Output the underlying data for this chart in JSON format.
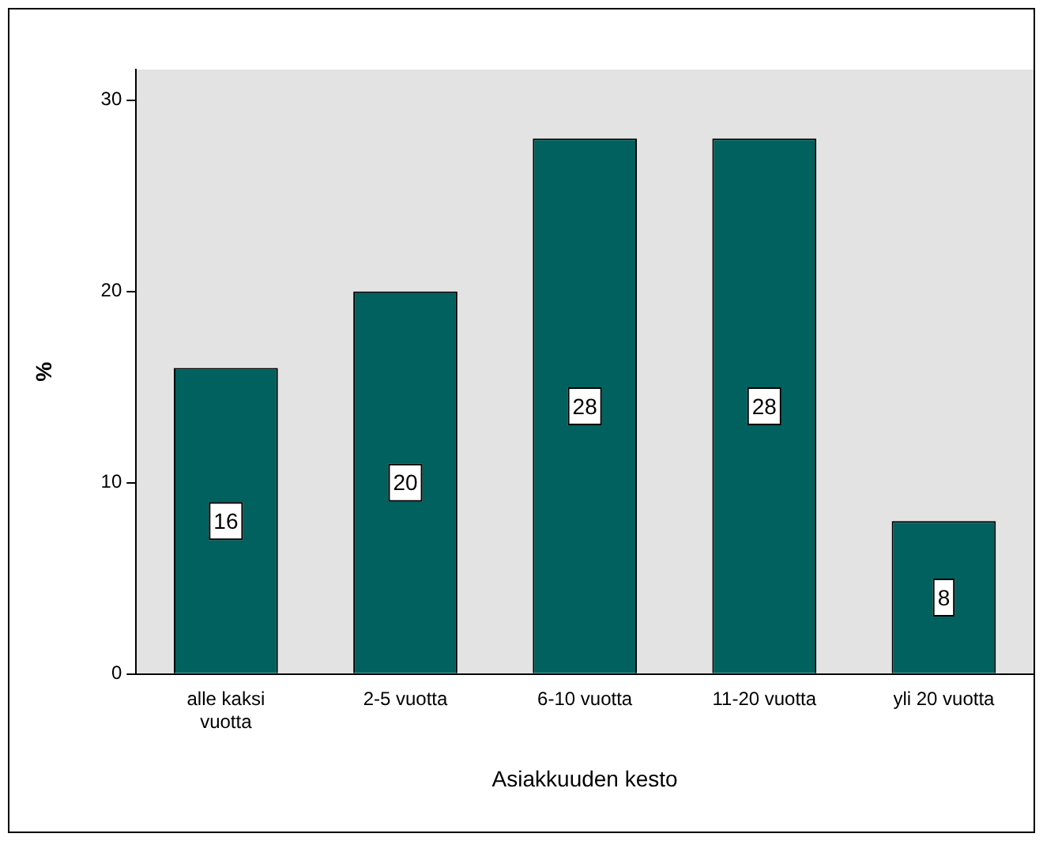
{
  "chart_data": {
    "type": "bar",
    "xlabel": "Asiakkuuden kesto",
    "ylabel": "%",
    "categories": [
      "alle kaksi vuotta",
      "2-5 vuotta",
      "6-10 vuotta",
      "11-20 vuotta",
      "yli 20 vuotta"
    ],
    "values": [
      16,
      20,
      28,
      28,
      8
    ],
    "color": "#00615f",
    "ylim": [
      0,
      31.6
    ],
    "yticks": [
      0,
      10,
      20,
      30
    ],
    "grid": false,
    "legend": false,
    "data_labels": true
  }
}
